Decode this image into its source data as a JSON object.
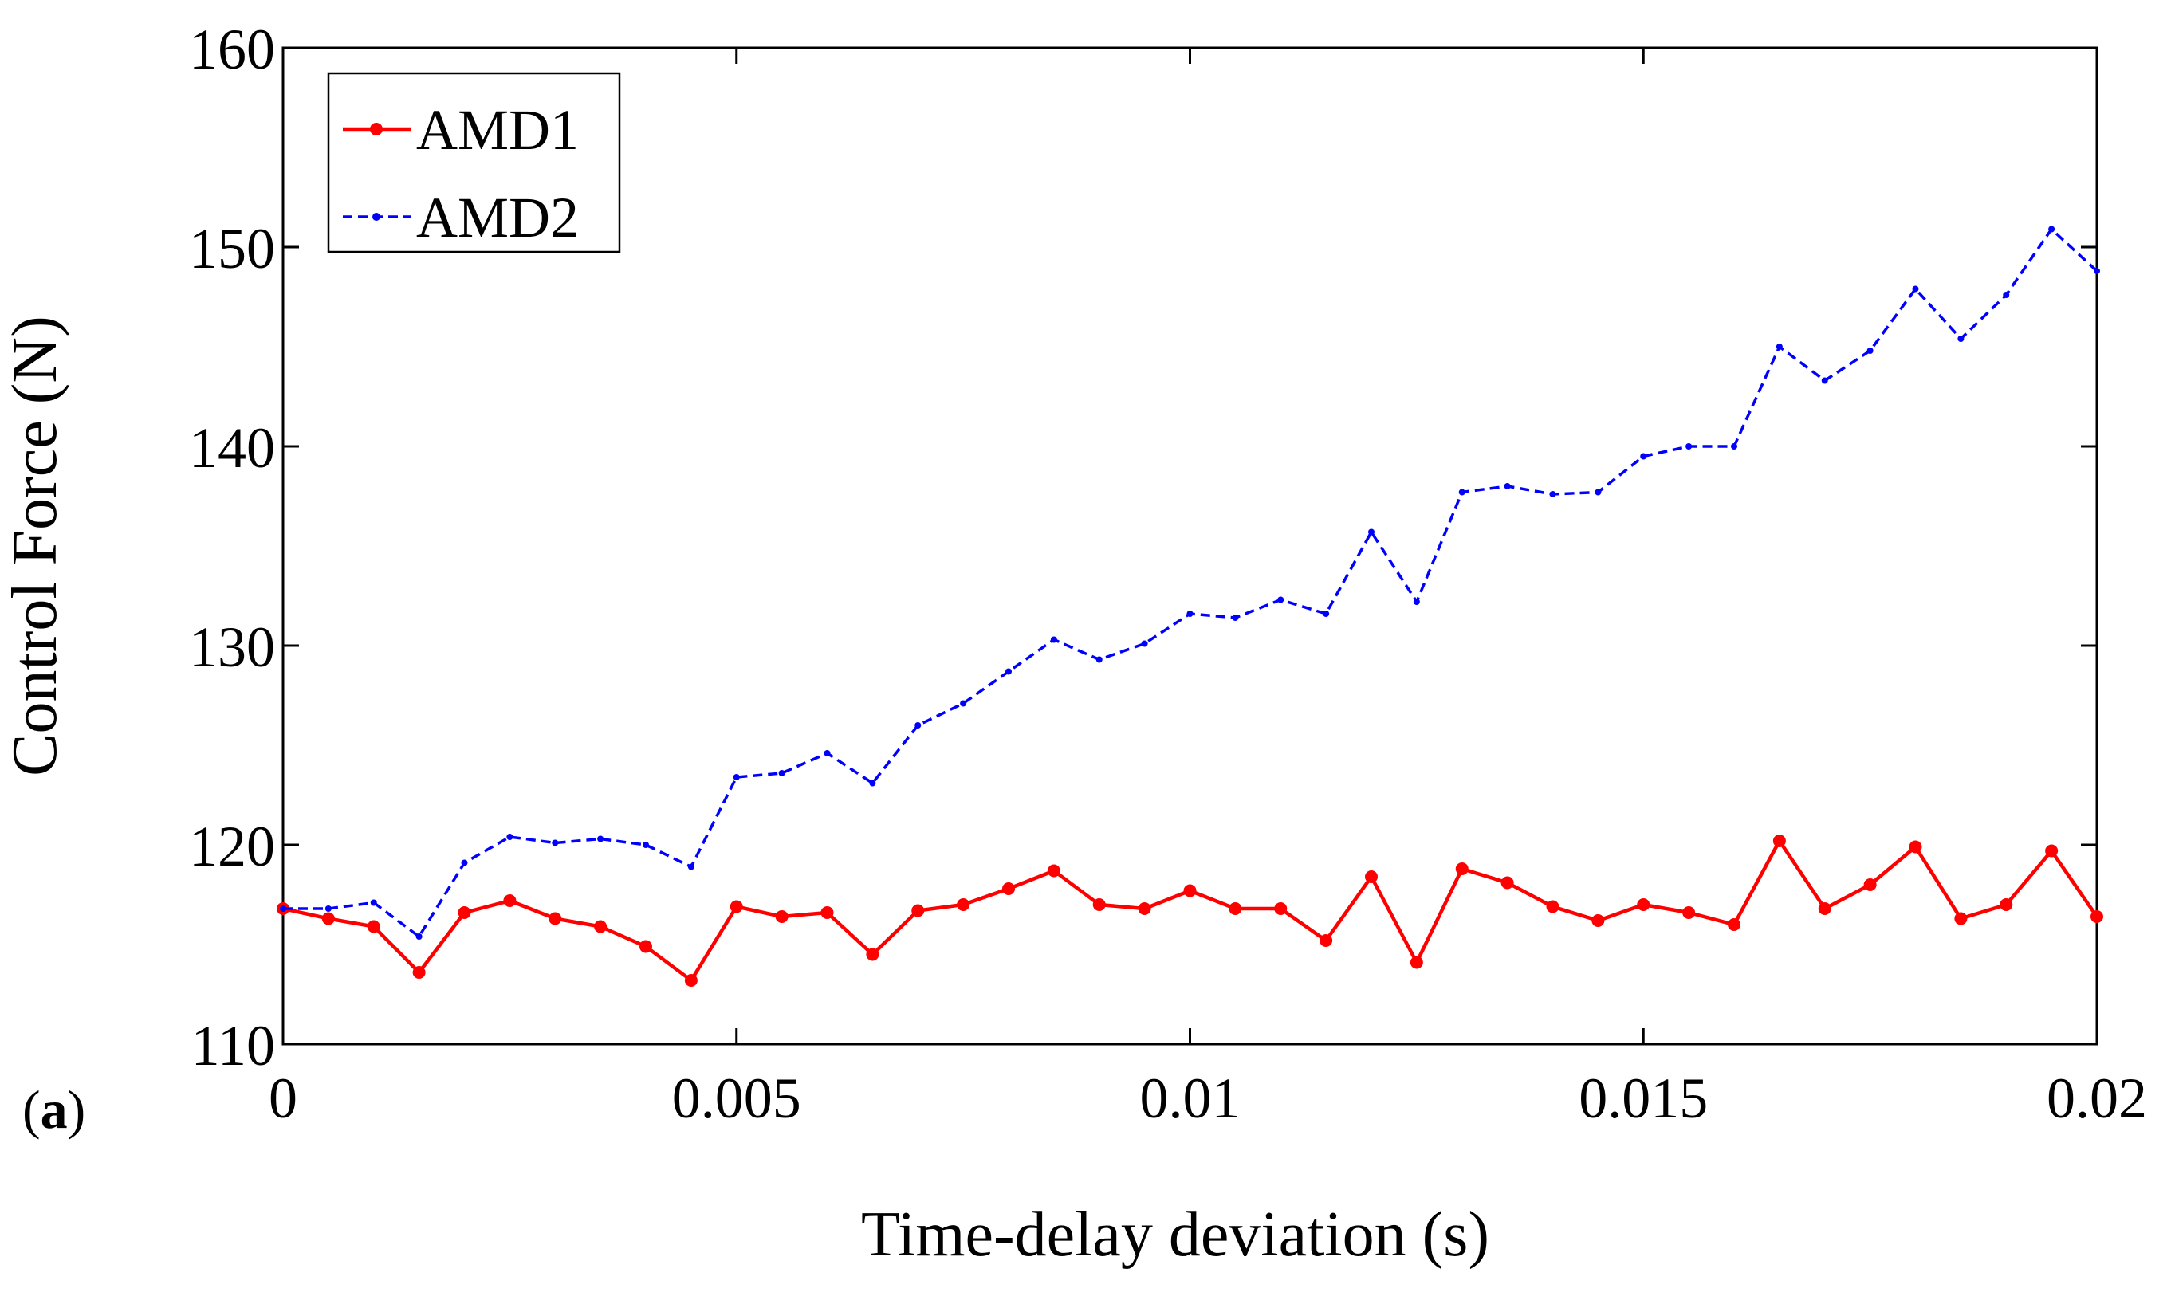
{
  "panel_label": {
    "open": "(",
    "letter": "a",
    "close": ")"
  },
  "chart_data": {
    "type": "line",
    "title": "",
    "xlabel": "Time-delay deviation (s)",
    "ylabel": "Control Force (N)",
    "xlim": [
      0,
      0.02
    ],
    "ylim": [
      110,
      160
    ],
    "xticks": [
      0,
      0.005,
      0.01,
      0.015,
      0.02
    ],
    "xtick_labels": [
      "0",
      "0.005",
      "0.01",
      "0.015",
      "0.02"
    ],
    "yticks": [
      110,
      120,
      130,
      140,
      150,
      160
    ],
    "ytick_labels": [
      "110",
      "120",
      "130",
      "140",
      "150",
      "160"
    ],
    "grid": false,
    "legend_position": "top-left",
    "x": [
      0,
      0.0005,
      0.001,
      0.0015,
      0.002,
      0.0025,
      0.003,
      0.0035,
      0.004,
      0.0045,
      0.005,
      0.0055,
      0.006,
      0.0065,
      0.007,
      0.0075,
      0.008,
      0.0085,
      0.009,
      0.0095,
      0.01,
      0.0105,
      0.011,
      0.0115,
      0.012,
      0.0125,
      0.013,
      0.0135,
      0.014,
      0.0145,
      0.015,
      0.0155,
      0.016,
      0.0165,
      0.017,
      0.0175,
      0.018,
      0.0185,
      0.019,
      0.0195,
      0.02
    ],
    "series": [
      {
        "name": "AMD1",
        "color": "#ff0000",
        "style": "solid",
        "marker": "dot",
        "values": [
          116.8,
          116.3,
          115.9,
          113.6,
          116.6,
          117.2,
          116.3,
          115.9,
          114.9,
          113.2,
          116.9,
          116.4,
          116.6,
          114.5,
          116.7,
          117.0,
          117.8,
          118.7,
          117.0,
          116.8,
          117.7,
          116.8,
          116.8,
          115.2,
          118.4,
          114.1,
          118.8,
          118.1,
          116.9,
          116.2,
          117.0,
          116.6,
          116.0,
          120.2,
          116.8,
          118.0,
          119.9,
          116.3,
          117.0,
          119.7,
          116.4
        ]
      },
      {
        "name": "AMD2",
        "color": "#0000ff",
        "style": "dashed",
        "marker": "dot",
        "values": [
          116.8,
          116.8,
          117.1,
          115.4,
          119.1,
          120.4,
          120.1,
          120.3,
          120.0,
          118.9,
          123.4,
          123.6,
          124.6,
          123.1,
          126.0,
          127.1,
          128.7,
          130.3,
          129.3,
          130.1,
          131.6,
          131.4,
          132.3,
          131.6,
          135.7,
          132.2,
          137.7,
          138.0,
          137.6,
          137.7,
          139.5,
          140.0,
          140.0,
          145.0,
          143.3,
          144.8,
          147.9,
          145.4,
          147.6,
          150.9,
          148.8
        ]
      }
    ]
  }
}
